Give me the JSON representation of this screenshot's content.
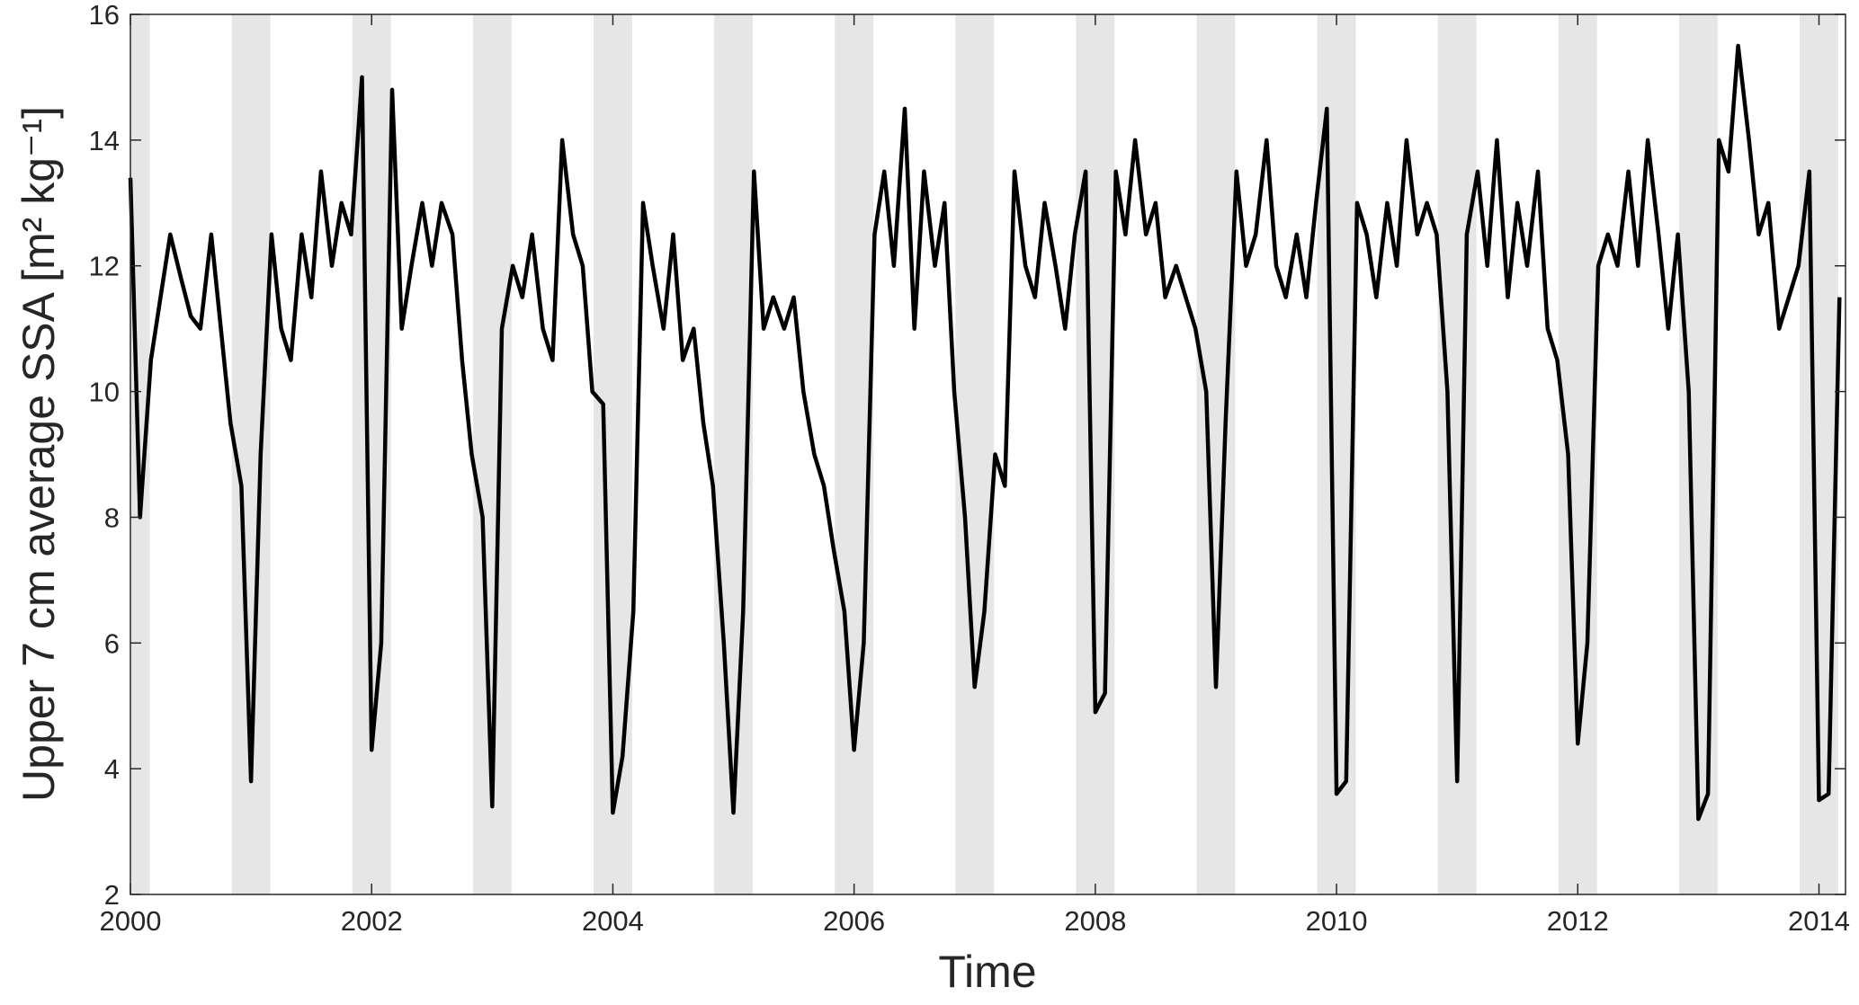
{
  "chart_data": {
    "type": "line",
    "x_label": "Time",
    "y_label": "Upper 7 cm average SSA [m² kg⁻¹]",
    "xlim": [
      2000,
      2014.22
    ],
    "xticks": [
      2000,
      2002,
      2004,
      2006,
      2008,
      2010,
      2012,
      2014
    ],
    "ylim": [
      2,
      16
    ],
    "yticks": [
      2,
      4,
      6,
      8,
      10,
      12,
      14,
      16
    ],
    "shaded_color": "#e6e6e6",
    "shaded_periods": [
      [
        2000,
        2000.16
      ],
      [
        2000.84,
        2001.16
      ],
      [
        2001.84,
        2002.16
      ],
      [
        2002.84,
        2003.16
      ],
      [
        2003.84,
        2004.16
      ],
      [
        2004.84,
        2005.16
      ],
      [
        2005.84,
        2006.16
      ],
      [
        2006.84,
        2007.16
      ],
      [
        2007.84,
        2008.16
      ],
      [
        2008.84,
        2009.16
      ],
      [
        2009.84,
        2010.16
      ],
      [
        2010.84,
        2011.16
      ],
      [
        2011.84,
        2012.16
      ],
      [
        2012.84,
        2013.16
      ],
      [
        2013.84,
        2014.16
      ]
    ],
    "series": [
      {
        "color": "#000000",
        "x": [
          2000.0,
          2000.08,
          2000.17,
          2000.25,
          2000.33,
          2000.42,
          2000.5,
          2000.58,
          2000.67,
          2000.75,
          2000.83,
          2000.92,
          2001.0,
          2001.08,
          2001.17,
          2001.25,
          2001.33,
          2001.42,
          2001.5,
          2001.58,
          2001.67,
          2001.75,
          2001.83,
          2001.92,
          2002.0,
          2002.08,
          2002.17,
          2002.25,
          2002.33,
          2002.42,
          2002.5,
          2002.58,
          2002.67,
          2002.75,
          2002.83,
          2002.92,
          2003.0,
          2003.08,
          2003.17,
          2003.25,
          2003.33,
          2003.42,
          2003.5,
          2003.58,
          2003.67,
          2003.75,
          2003.83,
          2003.92,
          2004.0,
          2004.08,
          2004.17,
          2004.25,
          2004.33,
          2004.42,
          2004.5,
          2004.58,
          2004.67,
          2004.75,
          2004.83,
          2004.92,
          2005.0,
          2005.08,
          2005.17,
          2005.25,
          2005.33,
          2005.42,
          2005.5,
          2005.58,
          2005.67,
          2005.75,
          2005.83,
          2005.92,
          2006.0,
          2006.08,
          2006.17,
          2006.25,
          2006.33,
          2006.42,
          2006.5,
          2006.58,
          2006.67,
          2006.75,
          2006.83,
          2006.92,
          2007.0,
          2007.08,
          2007.17,
          2007.25,
          2007.33,
          2007.42,
          2007.5,
          2007.58,
          2007.67,
          2007.75,
          2007.83,
          2007.92,
          2008.0,
          2008.08,
          2008.17,
          2008.25,
          2008.33,
          2008.42,
          2008.5,
          2008.58,
          2008.67,
          2008.75,
          2008.83,
          2008.92,
          2009.0,
          2009.08,
          2009.17,
          2009.25,
          2009.33,
          2009.42,
          2009.5,
          2009.58,
          2009.67,
          2009.75,
          2009.83,
          2009.92,
          2010.0,
          2010.08,
          2010.17,
          2010.25,
          2010.33,
          2010.42,
          2010.5,
          2010.58,
          2010.67,
          2010.75,
          2010.83,
          2010.92,
          2011.0,
          2011.08,
          2011.17,
          2011.25,
          2011.33,
          2011.42,
          2011.5,
          2011.58,
          2011.67,
          2011.75,
          2011.83,
          2011.92,
          2012.0,
          2012.08,
          2012.17,
          2012.25,
          2012.33,
          2012.42,
          2012.5,
          2012.58,
          2012.67,
          2012.75,
          2012.83,
          2012.92,
          2013.0,
          2013.08,
          2013.17,
          2013.25,
          2013.33,
          2013.42,
          2013.5,
          2013.58,
          2013.67,
          2013.75,
          2013.83,
          2013.92,
          2014.0,
          2014.08,
          2014.17
        ],
        "values": [
          13.4,
          8.0,
          10.5,
          11.5,
          12.5,
          11.8,
          11.2,
          11.0,
          12.5,
          11.0,
          9.5,
          8.5,
          3.8,
          9.0,
          12.5,
          11.0,
          10.5,
          12.5,
          11.5,
          13.5,
          12.0,
          13.0,
          12.5,
          15.0,
          4.3,
          6.0,
          14.8,
          11.0,
          12.0,
          13.0,
          12.0,
          13.0,
          12.5,
          10.5,
          9.0,
          8.0,
          3.4,
          11.0,
          12.0,
          11.5,
          12.5,
          11.0,
          10.5,
          14.0,
          12.5,
          12.0,
          10.0,
          9.8,
          3.3,
          4.2,
          6.5,
          13.0,
          12.0,
          11.0,
          12.5,
          10.5,
          11.0,
          9.5,
          8.5,
          6.0,
          3.3,
          6.5,
          13.5,
          11.0,
          11.5,
          11.0,
          11.5,
          10.0,
          9.0,
          8.5,
          7.5,
          6.5,
          4.3,
          6.0,
          12.5,
          13.5,
          12.0,
          14.5,
          11.0,
          13.5,
          12.0,
          13.0,
          10.0,
          8.0,
          5.3,
          6.5,
          9.0,
          8.5,
          13.5,
          12.0,
          11.5,
          13.0,
          12.0,
          11.0,
          12.5,
          13.5,
          4.9,
          5.2,
          13.5,
          12.5,
          14.0,
          12.5,
          13.0,
          11.5,
          12.0,
          11.5,
          11.0,
          10.0,
          5.3,
          9.5,
          13.5,
          12.0,
          12.5,
          14.0,
          12.0,
          11.5,
          12.5,
          11.5,
          13.0,
          14.5,
          3.6,
          3.8,
          13.0,
          12.5,
          11.5,
          13.0,
          12.0,
          14.0,
          12.5,
          13.0,
          12.5,
          10.0,
          3.8,
          12.5,
          13.5,
          12.0,
          14.0,
          11.5,
          13.0,
          12.0,
          13.5,
          11.0,
          10.5,
          9.0,
          4.4,
          6.0,
          12.0,
          12.5,
          12.0,
          13.5,
          12.0,
          14.0,
          12.5,
          11.0,
          12.5,
          10.0,
          3.2,
          3.6,
          14.0,
          13.5,
          15.5,
          14.0,
          12.5,
          13.0,
          11.0,
          11.5,
          12.0,
          13.5,
          3.5,
          3.6,
          11.5
        ]
      }
    ]
  }
}
